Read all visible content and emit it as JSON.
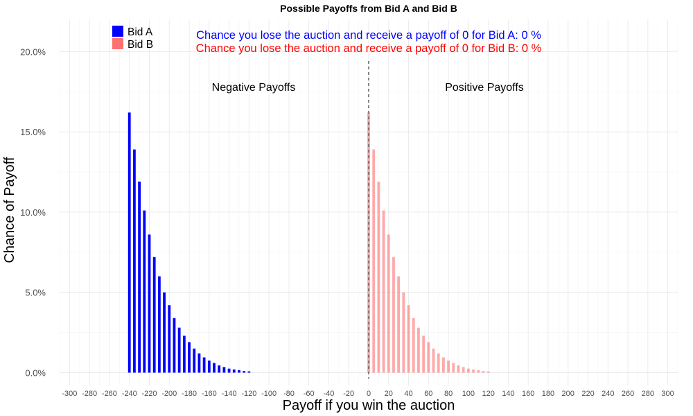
{
  "chart_data": {
    "type": "bar",
    "title": "Possible Payoffs from Bid A and Bid B",
    "xlabel": "Payoff if you win the auction",
    "ylabel": "Chance of Payoff",
    "xlim": [
      -310,
      310
    ],
    "ylim": [
      -0.008,
      0.22
    ],
    "x_ticks": [
      -300,
      -280,
      -260,
      -240,
      -220,
      -200,
      -180,
      -160,
      -140,
      -120,
      -100,
      -80,
      -60,
      -40,
      -20,
      0,
      20,
      40,
      60,
      80,
      100,
      120,
      140,
      160,
      180,
      200,
      220,
      240,
      260,
      280,
      300
    ],
    "x_tick_labels": [
      "-300",
      "-280",
      "-260",
      "-240",
      "-220",
      "-200",
      "-180",
      "-160",
      "-140",
      "-120",
      "-100",
      "-80",
      "-60",
      "-40",
      "-20",
      "0",
      "20",
      "40",
      "60",
      "80",
      "100",
      "120",
      "140",
      "160",
      "180",
      "200",
      "220",
      "240",
      "260",
      "280",
      "300"
    ],
    "y_ticks": [
      0,
      0.05,
      0.1,
      0.15,
      0.2
    ],
    "y_tick_labels": [
      "0.0%",
      "5.0%",
      "10.0%",
      "15.0%",
      "20.0%"
    ],
    "grid": true,
    "legend_position": "top-left",
    "reference_line": {
      "x": 0,
      "style": "dashed",
      "color": "#666666"
    },
    "series": [
      {
        "name": "Bid A",
        "color": "#0000ff",
        "x": [
          -240,
          -235,
          -230,
          -225,
          -220,
          -215,
          -210,
          -205,
          -200,
          -195,
          -190,
          -185,
          -180,
          -175,
          -170,
          -165,
          -160,
          -155,
          -150,
          -145,
          -140,
          -135,
          -130,
          -125,
          -120
        ],
        "values": [
          0.162,
          0.139,
          0.119,
          0.101,
          0.086,
          0.072,
          0.06,
          0.05,
          0.042,
          0.034,
          0.028,
          0.023,
          0.019,
          0.015,
          0.012,
          0.0095,
          0.0075,
          0.006,
          0.0045,
          0.0035,
          0.0025,
          0.002,
          0.0015,
          0.001,
          0.0008
        ]
      },
      {
        "name": "Bid B",
        "color": "#ff7070",
        "x": [
          0,
          5,
          10,
          15,
          20,
          25,
          30,
          35,
          40,
          45,
          50,
          55,
          60,
          65,
          70,
          75,
          80,
          85,
          90,
          95,
          100,
          105,
          110,
          115,
          120
        ],
        "values": [
          0.162,
          0.139,
          0.119,
          0.101,
          0.086,
          0.072,
          0.06,
          0.05,
          0.042,
          0.034,
          0.028,
          0.023,
          0.019,
          0.015,
          0.012,
          0.0095,
          0.0075,
          0.006,
          0.0045,
          0.0035,
          0.0025,
          0.002,
          0.0015,
          0.001,
          0.0008
        ]
      }
    ],
    "annotations": {
      "line_a": "Chance you lose the auction and receive a payoff of 0 for Bid A:  0 %",
      "line_b": "Chance you lose the auction and receive a payoff of 0 for Bid B:  0 %",
      "line_a_color": "#0000ff",
      "line_b_color": "#ff0000",
      "negative_label": "Negative Payoffs",
      "positive_label": "Positive Payoffs"
    }
  }
}
